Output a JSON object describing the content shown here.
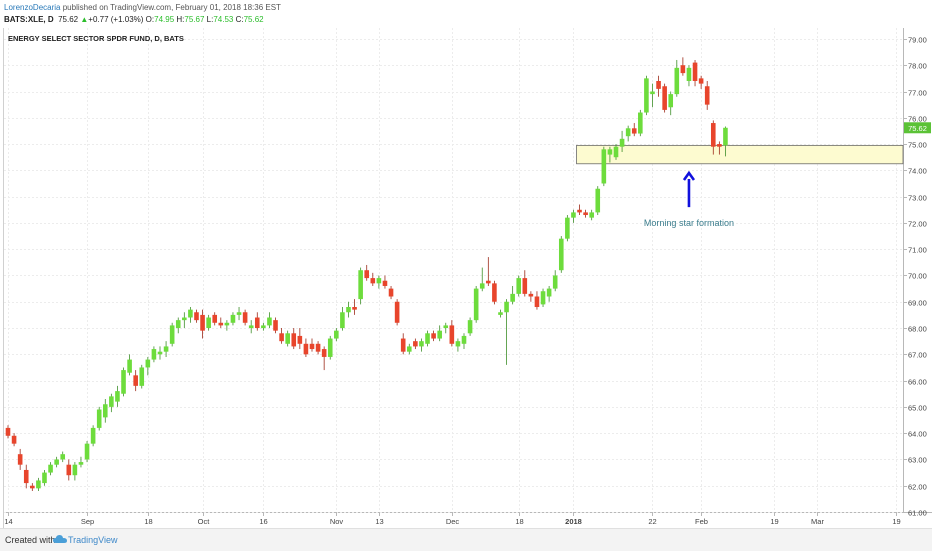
{
  "header": {
    "author": "LorenzoDecaria",
    "published_text": "published on TradingView.com, February 01, 2018 18:36 EST",
    "symbol_line": "BATS:XLE, D",
    "last_price": "75.62",
    "change_arrow": "▲",
    "change": "+0.77 (+1.03%)",
    "o_label": "O:",
    "o_value": "74.95",
    "h_label": "H:",
    "h_value": "75.67",
    "l_label": "L:",
    "l_value": "74.53",
    "c_label": "C:",
    "c_value": "75.62"
  },
  "colors": {
    "up": "#6ddc3c",
    "down": "#e8452c",
    "zone_fill": "#fdfbd0",
    "zone_border": "#6a6a6a",
    "arrow": "#1111dd",
    "annotation": "#3a7c8c",
    "price_tag": "#5bc236"
  },
  "chart_data": {
    "type": "candlestick",
    "title": "ENERGY SELECT SECTOR SPDR FUND, D, BATS",
    "ylim": [
      60.8,
      79.3
    ],
    "y_ticks": [
      "61.00",
      "62.00",
      "63.00",
      "64.00",
      "65.00",
      "66.00",
      "67.00",
      "68.00",
      "69.00",
      "70.00",
      "71.00",
      "72.00",
      "73.00",
      "74.00",
      "75.00",
      "76.00",
      "77.00",
      "78.00",
      "79.00"
    ],
    "x_ticks": [
      {
        "label": "14",
        "index": 0
      },
      {
        "label": "Sep",
        "index": 13
      },
      {
        "label": "18",
        "index": 23
      },
      {
        "label": "Oct",
        "index": 32
      },
      {
        "label": "16",
        "index": 42
      },
      {
        "label": "Nov",
        "index": 54
      },
      {
        "label": "13",
        "index": 61
      },
      {
        "label": "Dec",
        "index": 73
      },
      {
        "label": "18",
        "index": 84
      },
      {
        "label": "2018",
        "index": 93,
        "bold": true
      },
      {
        "label": "22",
        "index": 106
      },
      {
        "label": "Feb",
        "index": 114
      },
      {
        "label": "19",
        "index": 126
      },
      {
        "label": "Mar",
        "index": 133
      },
      {
        "label": "19",
        "index": 146
      }
    ],
    "total_slots": 149,
    "last_price": 75.62,
    "zone": {
      "low": 74.25,
      "high": 74.95,
      "start_index": 94
    },
    "annotation": {
      "text": "Morning star formation",
      "arrow_index": 112,
      "arrow_from": 72.6,
      "arrow_to": 73.9
    },
    "candles": [
      {
        "o": 64.2,
        "h": 64.3,
        "l": 63.8,
        "c": 63.9
      },
      {
        "o": 63.9,
        "h": 64.0,
        "l": 63.5,
        "c": 63.6
      },
      {
        "o": 63.2,
        "h": 63.4,
        "l": 62.6,
        "c": 62.8
      },
      {
        "o": 62.6,
        "h": 62.8,
        "l": 61.9,
        "c": 62.1
      },
      {
        "o": 62.0,
        "h": 62.1,
        "l": 61.8,
        "c": 61.9
      },
      {
        "o": 61.9,
        "h": 62.3,
        "l": 61.8,
        "c": 62.2
      },
      {
        "o": 62.1,
        "h": 62.6,
        "l": 62.0,
        "c": 62.5
      },
      {
        "o": 62.5,
        "h": 62.9,
        "l": 62.4,
        "c": 62.8
      },
      {
        "o": 62.8,
        "h": 63.1,
        "l": 62.7,
        "c": 63.0
      },
      {
        "o": 63.0,
        "h": 63.3,
        "l": 62.9,
        "c": 63.2
      },
      {
        "o": 62.8,
        "h": 63.0,
        "l": 62.2,
        "c": 62.4
      },
      {
        "o": 62.4,
        "h": 62.9,
        "l": 62.2,
        "c": 62.8
      },
      {
        "o": 62.8,
        "h": 63.1,
        "l": 62.7,
        "c": 62.9
      },
      {
        "o": 63.0,
        "h": 63.7,
        "l": 62.9,
        "c": 63.6
      },
      {
        "o": 63.6,
        "h": 64.3,
        "l": 63.5,
        "c": 64.2
      },
      {
        "o": 64.2,
        "h": 65.0,
        "l": 64.1,
        "c": 64.9
      },
      {
        "o": 64.6,
        "h": 65.3,
        "l": 64.4,
        "c": 65.1
      },
      {
        "o": 65.0,
        "h": 65.5,
        "l": 64.8,
        "c": 65.4
      },
      {
        "o": 65.2,
        "h": 65.8,
        "l": 65.0,
        "c": 65.6
      },
      {
        "o": 65.5,
        "h": 66.5,
        "l": 65.4,
        "c": 66.4
      },
      {
        "o": 66.3,
        "h": 67.0,
        "l": 66.2,
        "c": 66.8
      },
      {
        "o": 66.2,
        "h": 66.4,
        "l": 65.6,
        "c": 65.8
      },
      {
        "o": 65.8,
        "h": 66.6,
        "l": 65.7,
        "c": 66.5
      },
      {
        "o": 66.5,
        "h": 66.9,
        "l": 66.2,
        "c": 66.8
      },
      {
        "o": 66.8,
        "h": 67.3,
        "l": 66.7,
        "c": 67.2
      },
      {
        "o": 67.0,
        "h": 67.3,
        "l": 66.8,
        "c": 67.1
      },
      {
        "o": 67.1,
        "h": 67.5,
        "l": 66.9,
        "c": 67.3
      },
      {
        "o": 67.4,
        "h": 68.2,
        "l": 67.3,
        "c": 68.1
      },
      {
        "o": 68.0,
        "h": 68.4,
        "l": 67.8,
        "c": 68.3
      },
      {
        "o": 68.3,
        "h": 68.6,
        "l": 68.0,
        "c": 68.4
      },
      {
        "o": 68.4,
        "h": 68.8,
        "l": 68.2,
        "c": 68.7
      },
      {
        "o": 68.6,
        "h": 68.7,
        "l": 68.2,
        "c": 68.3
      },
      {
        "o": 68.5,
        "h": 68.7,
        "l": 67.6,
        "c": 67.9
      },
      {
        "o": 68.0,
        "h": 68.5,
        "l": 67.9,
        "c": 68.4
      },
      {
        "o": 68.5,
        "h": 68.6,
        "l": 68.1,
        "c": 68.2
      },
      {
        "o": 68.2,
        "h": 68.4,
        "l": 68.0,
        "c": 68.1
      },
      {
        "o": 68.1,
        "h": 68.3,
        "l": 67.9,
        "c": 68.2
      },
      {
        "o": 68.2,
        "h": 68.6,
        "l": 68.1,
        "c": 68.5
      },
      {
        "o": 68.5,
        "h": 68.8,
        "l": 68.3,
        "c": 68.6
      },
      {
        "o": 68.6,
        "h": 68.7,
        "l": 68.1,
        "c": 68.2
      },
      {
        "o": 68.0,
        "h": 68.3,
        "l": 67.8,
        "c": 68.1
      },
      {
        "o": 68.4,
        "h": 68.6,
        "l": 67.9,
        "c": 68.0
      },
      {
        "o": 68.0,
        "h": 68.2,
        "l": 67.9,
        "c": 68.1
      },
      {
        "o": 68.1,
        "h": 68.6,
        "l": 68.0,
        "c": 68.4
      },
      {
        "o": 68.3,
        "h": 68.4,
        "l": 67.8,
        "c": 67.9
      },
      {
        "o": 67.8,
        "h": 68.0,
        "l": 67.4,
        "c": 67.5
      },
      {
        "o": 67.4,
        "h": 67.9,
        "l": 67.3,
        "c": 67.8
      },
      {
        "o": 67.8,
        "h": 68.0,
        "l": 67.2,
        "c": 67.3
      },
      {
        "o": 67.7,
        "h": 68.0,
        "l": 67.2,
        "c": 67.4
      },
      {
        "o": 67.4,
        "h": 67.6,
        "l": 66.9,
        "c": 67.0
      },
      {
        "o": 67.4,
        "h": 67.6,
        "l": 67.1,
        "c": 67.2
      },
      {
        "o": 67.4,
        "h": 67.5,
        "l": 67.0,
        "c": 67.1
      },
      {
        "o": 67.2,
        "h": 67.3,
        "l": 66.4,
        "c": 66.9
      },
      {
        "o": 66.9,
        "h": 67.7,
        "l": 66.8,
        "c": 67.6
      },
      {
        "o": 67.6,
        "h": 68.0,
        "l": 67.5,
        "c": 67.9
      },
      {
        "o": 68.0,
        "h": 68.8,
        "l": 67.9,
        "c": 68.6
      },
      {
        "o": 68.6,
        "h": 69.0,
        "l": 68.4,
        "c": 68.8
      },
      {
        "o": 68.8,
        "h": 69.1,
        "l": 68.5,
        "c": 68.7
      },
      {
        "o": 69.1,
        "h": 70.3,
        "l": 68.9,
        "c": 70.2
      },
      {
        "o": 70.2,
        "h": 70.4,
        "l": 69.8,
        "c": 69.9
      },
      {
        "o": 69.9,
        "h": 70.1,
        "l": 69.6,
        "c": 69.7
      },
      {
        "o": 69.7,
        "h": 70.0,
        "l": 69.5,
        "c": 69.9
      },
      {
        "o": 69.8,
        "h": 70.0,
        "l": 69.5,
        "c": 69.6
      },
      {
        "o": 69.5,
        "h": 69.6,
        "l": 69.1,
        "c": 69.2
      },
      {
        "o": 69.0,
        "h": 69.1,
        "l": 68.1,
        "c": 68.2
      },
      {
        "o": 67.6,
        "h": 67.8,
        "l": 67.0,
        "c": 67.1
      },
      {
        "o": 67.1,
        "h": 67.4,
        "l": 67.0,
        "c": 67.3
      },
      {
        "o": 67.5,
        "h": 67.6,
        "l": 67.2,
        "c": 67.3
      },
      {
        "o": 67.3,
        "h": 67.6,
        "l": 67.1,
        "c": 67.5
      },
      {
        "o": 67.4,
        "h": 67.9,
        "l": 67.3,
        "c": 67.8
      },
      {
        "o": 67.8,
        "h": 67.9,
        "l": 67.5,
        "c": 67.6
      },
      {
        "o": 67.6,
        "h": 68.1,
        "l": 67.5,
        "c": 67.9
      },
      {
        "o": 68.0,
        "h": 68.2,
        "l": 67.8,
        "c": 68.1
      },
      {
        "o": 68.1,
        "h": 68.3,
        "l": 67.3,
        "c": 67.4
      },
      {
        "o": 67.3,
        "h": 67.6,
        "l": 67.1,
        "c": 67.5
      },
      {
        "o": 67.4,
        "h": 67.8,
        "l": 67.2,
        "c": 67.7
      },
      {
        "o": 67.8,
        "h": 68.4,
        "l": 67.7,
        "c": 68.3
      },
      {
        "o": 68.3,
        "h": 69.6,
        "l": 68.2,
        "c": 69.5
      },
      {
        "o": 69.5,
        "h": 70.3,
        "l": 69.4,
        "c": 69.7
      },
      {
        "o": 69.8,
        "h": 70.7,
        "l": 69.6,
        "c": 69.7
      },
      {
        "o": 69.7,
        "h": 69.8,
        "l": 68.9,
        "c": 69.0
      },
      {
        "o": 68.5,
        "h": 68.7,
        "l": 68.4,
        "c": 68.6
      },
      {
        "o": 68.6,
        "h": 69.1,
        "l": 66.6,
        "c": 69.0
      },
      {
        "o": 69.0,
        "h": 69.6,
        "l": 68.9,
        "c": 69.3
      },
      {
        "o": 69.3,
        "h": 70.0,
        "l": 69.2,
        "c": 69.9
      },
      {
        "o": 69.9,
        "h": 70.2,
        "l": 69.2,
        "c": 69.3
      },
      {
        "o": 69.3,
        "h": 69.4,
        "l": 69.0,
        "c": 69.2
      },
      {
        "o": 69.2,
        "h": 69.4,
        "l": 68.7,
        "c": 68.8
      },
      {
        "o": 68.9,
        "h": 69.5,
        "l": 68.8,
        "c": 69.4
      },
      {
        "o": 69.2,
        "h": 69.6,
        "l": 69.0,
        "c": 69.5
      },
      {
        "o": 69.5,
        "h": 70.2,
        "l": 69.4,
        "c": 70.0
      },
      {
        "o": 70.2,
        "h": 71.5,
        "l": 70.1,
        "c": 71.4
      },
      {
        "o": 71.4,
        "h": 72.3,
        "l": 71.3,
        "c": 72.2
      },
      {
        "o": 72.2,
        "h": 72.5,
        "l": 72.0,
        "c": 72.4
      },
      {
        "o": 72.5,
        "h": 72.7,
        "l": 72.3,
        "c": 72.4
      },
      {
        "o": 72.4,
        "h": 72.5,
        "l": 72.2,
        "c": 72.3
      },
      {
        "o": 72.2,
        "h": 72.5,
        "l": 72.1,
        "c": 72.4
      },
      {
        "o": 72.4,
        "h": 73.4,
        "l": 72.3,
        "c": 73.3
      },
      {
        "o": 73.5,
        "h": 74.9,
        "l": 73.4,
        "c": 74.8
      },
      {
        "o": 74.6,
        "h": 74.9,
        "l": 74.3,
        "c": 74.8
      },
      {
        "o": 74.5,
        "h": 75.0,
        "l": 74.4,
        "c": 74.9
      },
      {
        "o": 74.9,
        "h": 75.5,
        "l": 74.7,
        "c": 75.2
      },
      {
        "o": 75.3,
        "h": 75.7,
        "l": 75.1,
        "c": 75.6
      },
      {
        "o": 75.6,
        "h": 75.8,
        "l": 75.3,
        "c": 75.4
      },
      {
        "o": 75.4,
        "h": 76.3,
        "l": 75.3,
        "c": 76.2
      },
      {
        "o": 76.2,
        "h": 77.6,
        "l": 76.1,
        "c": 77.5
      },
      {
        "o": 76.9,
        "h": 77.3,
        "l": 76.4,
        "c": 77.0
      },
      {
        "o": 77.4,
        "h": 77.6,
        "l": 76.8,
        "c": 77.1
      },
      {
        "o": 77.2,
        "h": 77.3,
        "l": 76.2,
        "c": 76.3
      },
      {
        "o": 76.4,
        "h": 77.0,
        "l": 76.1,
        "c": 76.9
      },
      {
        "o": 76.9,
        "h": 78.2,
        "l": 76.8,
        "c": 77.9
      },
      {
        "o": 78.0,
        "h": 78.3,
        "l": 77.6,
        "c": 77.7
      },
      {
        "o": 77.4,
        "h": 78.0,
        "l": 77.2,
        "c": 77.9
      },
      {
        "o": 78.1,
        "h": 78.2,
        "l": 77.2,
        "c": 77.4
      },
      {
        "o": 77.5,
        "h": 77.6,
        "l": 77.1,
        "c": 77.3
      },
      {
        "o": 77.2,
        "h": 77.4,
        "l": 76.3,
        "c": 76.5
      },
      {
        "o": 75.8,
        "h": 75.9,
        "l": 74.6,
        "c": 74.9
      },
      {
        "o": 75.0,
        "h": 75.1,
        "l": 74.6,
        "c": 74.9
      },
      {
        "o": 74.95,
        "h": 75.67,
        "l": 74.53,
        "c": 75.62
      }
    ]
  },
  "footer": {
    "created_with": "Created with",
    "brand": "TradingView"
  }
}
